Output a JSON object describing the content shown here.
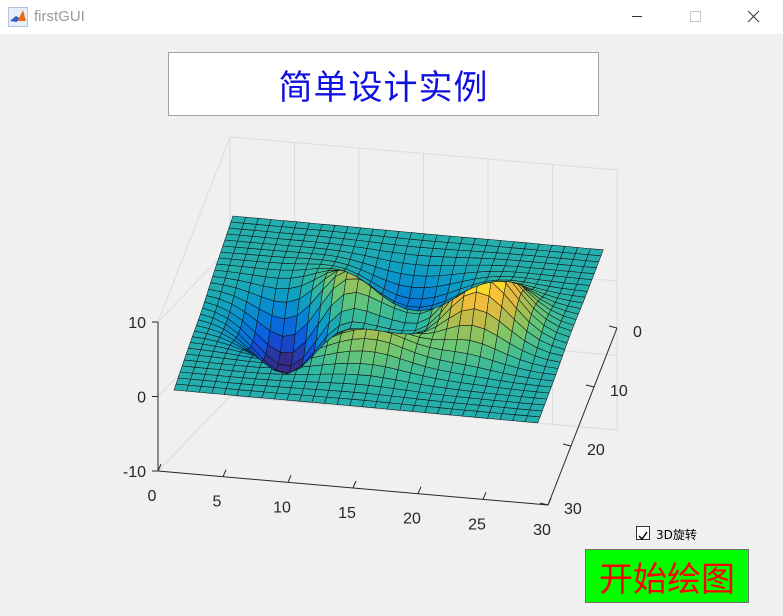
{
  "window": {
    "title": "firstGUI",
    "icon": "matlab-icon",
    "controls": [
      "minimize-icon",
      "maximize-icon",
      "close-icon"
    ]
  },
  "header": {
    "title": "简单设计实例"
  },
  "controls": {
    "rotate3d_label": "3D旋转",
    "rotate3d_checked": true,
    "start_button_label": "开始绘图",
    "start_button_color": "#00ff00",
    "start_button_text_color": "#ff0000"
  },
  "heading_color": "#1010e0",
  "chart_data": {
    "type": "surface",
    "function": "peaks",
    "grid_size": [
      30,
      30
    ],
    "colormap": "parula",
    "x_ticks": [
      0,
      5,
      10,
      15,
      20,
      25,
      30
    ],
    "y_ticks": [
      0,
      10,
      20,
      30
    ],
    "z_ticks": [
      -10,
      0,
      10
    ],
    "xlim": [
      0,
      30
    ],
    "ylim": [
      0,
      30
    ],
    "zlim": [
      -10,
      10
    ],
    "grid": true
  }
}
